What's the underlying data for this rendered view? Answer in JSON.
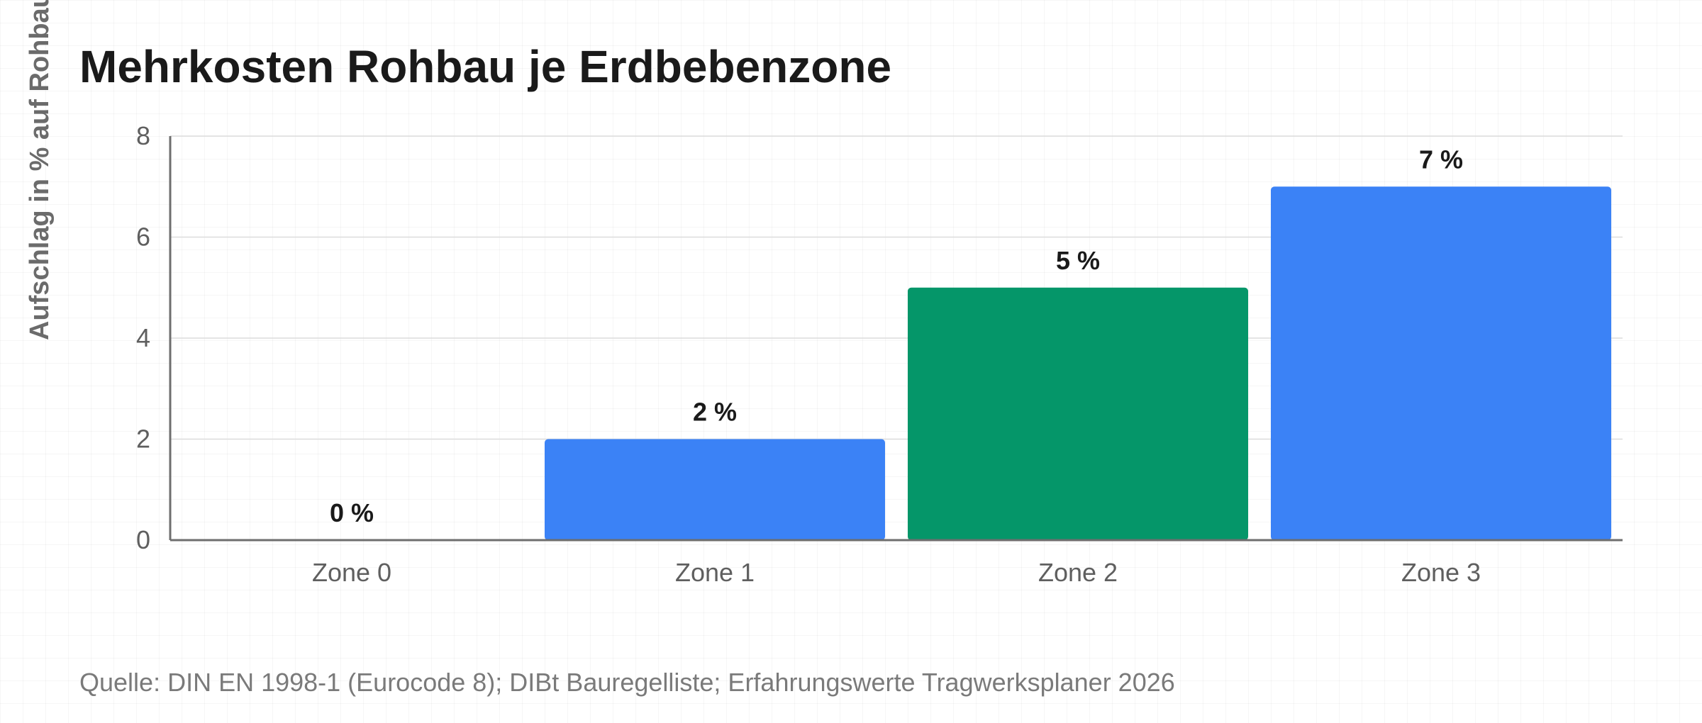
{
  "chart_data": {
    "type": "bar",
    "title": "Mehrkosten Rohbau je Erdbebenzone",
    "ylabel": "Aufschlag in % auf Rohbau",
    "xlabel": "",
    "categories": [
      "Zone 0",
      "Zone 1",
      "Zone 2",
      "Zone 3"
    ],
    "values": [
      0,
      2,
      5,
      7
    ],
    "data_labels": [
      "0 %",
      "2 %",
      "5 %",
      "7 %"
    ],
    "bar_colors": [
      "#3b82f6",
      "#3b82f6",
      "#059669",
      "#3b82f6"
    ],
    "ylim": [
      0,
      8
    ],
    "yticks": [
      0,
      2,
      4,
      6,
      8
    ],
    "grid": true,
    "legend": "none"
  },
  "source_note": "Quelle: DIN EN 1998-1 (Eurocode 8); DIBt Bauregelliste; Erfahrungswerte Tragwerksplaner 2026",
  "colors": {
    "primary": "#3b82f6",
    "highlight": "#059669",
    "text": "#1a1a1a",
    "muted": "#6b6b6b"
  }
}
